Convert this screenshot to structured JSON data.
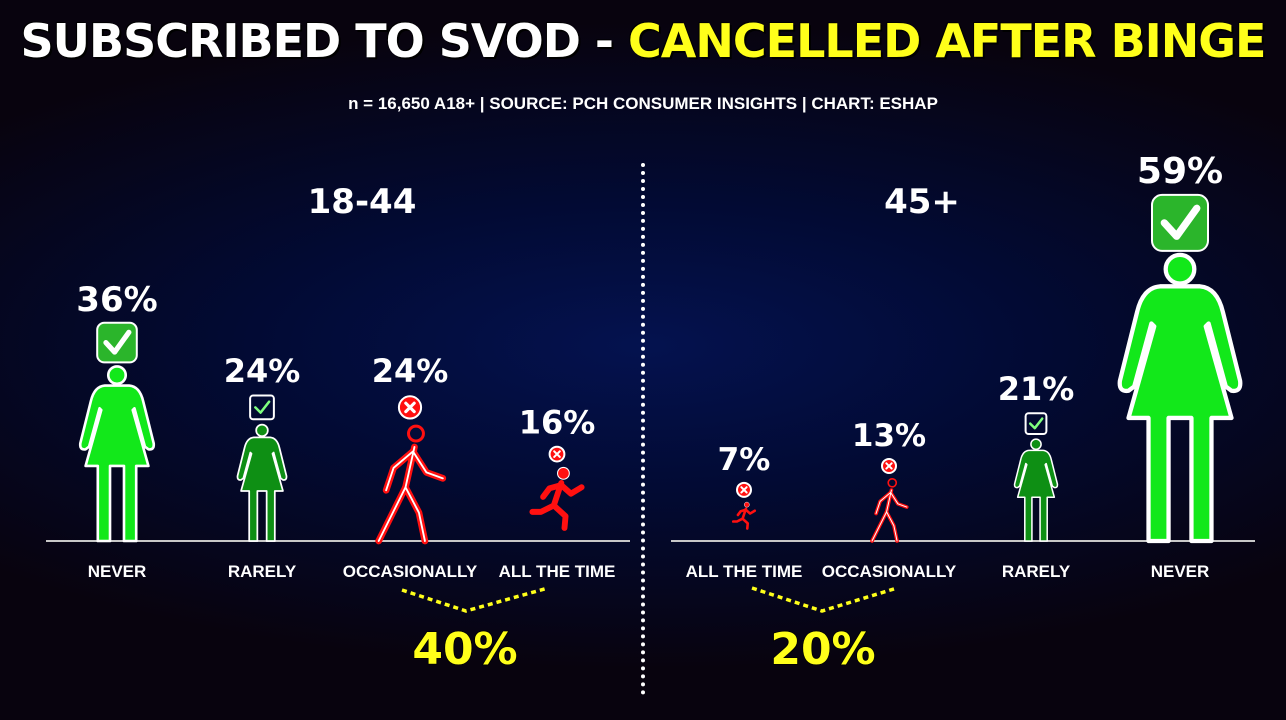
{
  "title": {
    "part1": "SUBSCRIBED TO SVOD - ",
    "part2": "CANCELLED AFTER BINGE"
  },
  "subtitle": "n = 16,650 A18+ | SOURCE: PCH CONSUMER INSIGHTS | CHART: ESHAP",
  "colors": {
    "safe": "#12e81a",
    "safe_dark": "#0e8f14",
    "cancel": "#ff1010",
    "cancel_dark": "#a00000",
    "highlight": "#ffff1a"
  },
  "chart_data": [
    {
      "type": "pictograph",
      "title": "18-44",
      "categories": [
        "NEVER",
        "RARELY",
        "OCCASIONALLY",
        "ALL THE TIME"
      ],
      "values": [
        36,
        24,
        24,
        16
      ],
      "labels": [
        "36%",
        "24%",
        "24%",
        "16%"
      ],
      "icons": [
        "standing-person-icon",
        "standing-person-icon",
        "walking-person-icon",
        "running-person-icon"
      ],
      "badges": [
        "check-icon",
        "check-outline-icon",
        "cancel-icon",
        "cancel-icon"
      ],
      "bracket_total": "40%"
    },
    {
      "type": "pictograph",
      "title": "45+",
      "categories": [
        "ALL THE TIME",
        "OCCASIONALLY",
        "RARELY",
        "NEVER"
      ],
      "values": [
        7,
        13,
        21,
        59
      ],
      "labels": [
        "7%",
        "13%",
        "21%",
        "59%"
      ],
      "icons": [
        "running-person-icon",
        "walking-person-icon",
        "standing-person-icon",
        "standing-person-icon"
      ],
      "badges": [
        "cancel-icon",
        "cancel-icon",
        "check-outline-icon",
        "check-icon"
      ],
      "bracket_total": "20%"
    }
  ]
}
